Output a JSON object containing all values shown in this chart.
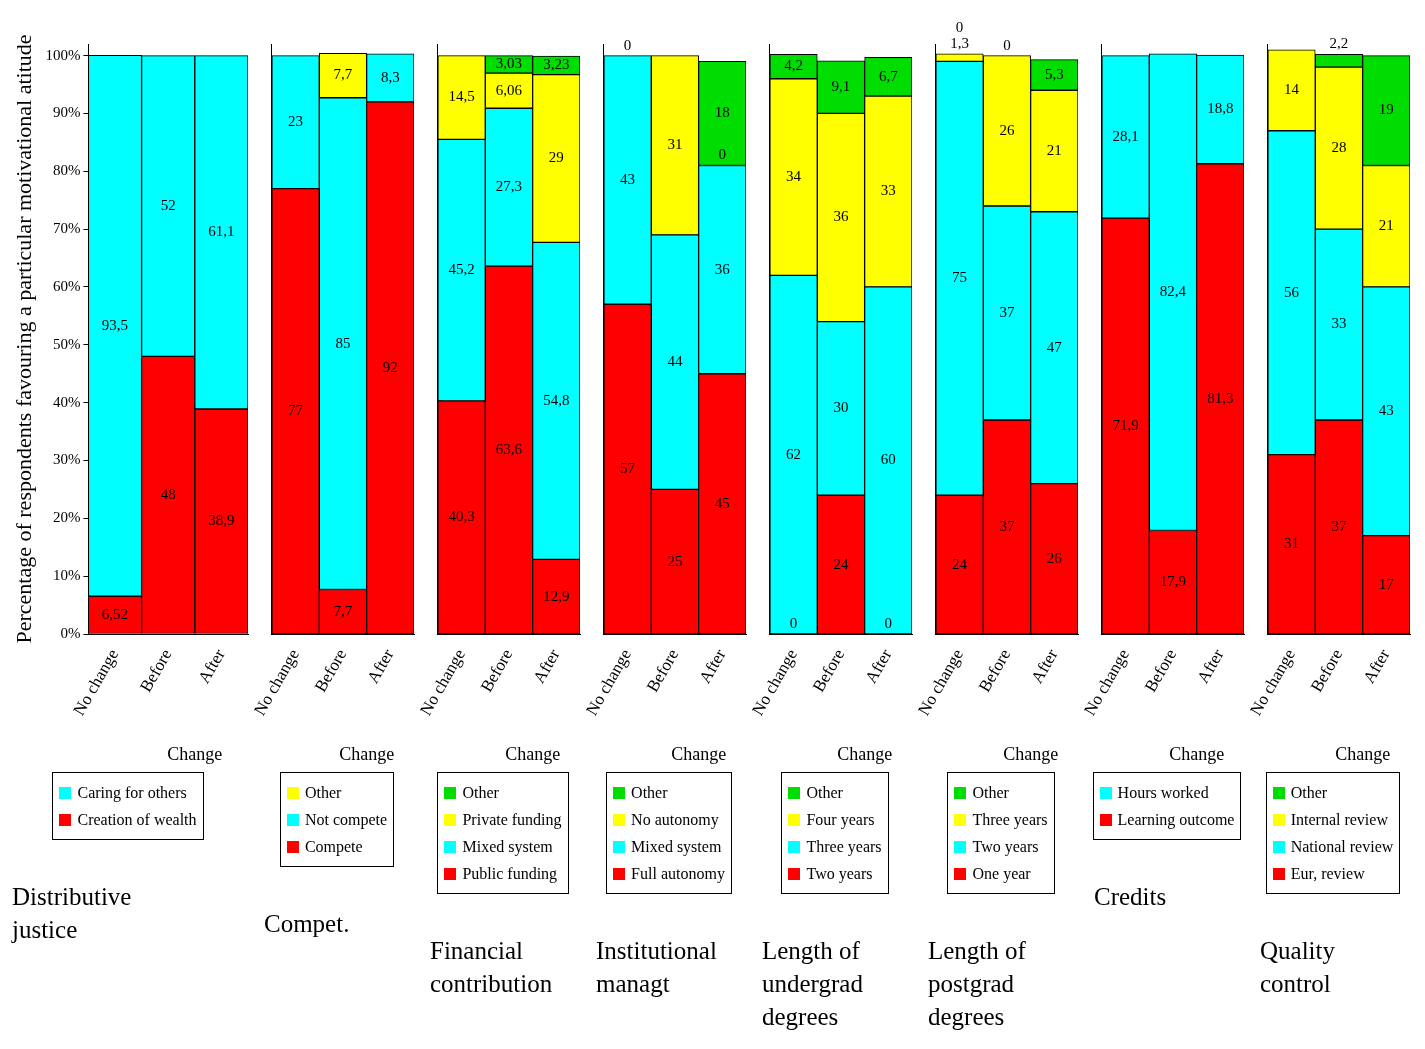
{
  "chart_data": [
    {
      "type": "bar",
      "stacked": true,
      "title": "Distributive justice",
      "ylabel": "Percentage of respondents favouring a particular motivational atitude",
      "categories": [
        "No change",
        "Before",
        "After"
      ],
      "annotations": [
        "Change"
      ],
      "ylim": [
        0,
        102
      ],
      "yticks": [
        {
          "value": 0,
          "label": "0%"
        },
        {
          "value": 10,
          "label": "10%"
        },
        {
          "value": 20,
          "label": "20%"
        },
        {
          "value": 30,
          "label": "30%"
        },
        {
          "value": 40,
          "label": "40%"
        },
        {
          "value": 50,
          "label": "50%"
        },
        {
          "value": 60,
          "label": "60%"
        },
        {
          "value": 70,
          "label": "70%"
        },
        {
          "value": 80,
          "label": "80%"
        },
        {
          "value": 90,
          "label": "90%"
        },
        {
          "value": 100,
          "label": "100%"
        }
      ],
      "legend": "bottom",
      "series": [
        {
          "name": "Creation of wealth",
          "color": "#ff0000",
          "values": [
            6.52,
            48,
            38.9
          ],
          "value_labels": [
            "6,52",
            "48",
            "38,9"
          ]
        },
        {
          "name": "Caring for others",
          "color": "#00ffff",
          "values": [
            93.5,
            52,
            61.1
          ],
          "value_labels": [
            "93,5",
            "52",
            "61,1"
          ]
        }
      ]
    },
    {
      "type": "bar",
      "stacked": true,
      "title": "Compet.",
      "categories": [
        "No change",
        "Before",
        "After"
      ],
      "annotations": [
        "Change"
      ],
      "ylim": [
        0,
        102
      ],
      "tick_labels": "x",
      "legend": "bottom",
      "series": [
        {
          "name": "Compete",
          "color": "#ff0000",
          "values": [
            77,
            7.7,
            92
          ],
          "value_labels": [
            "77",
            "7,7",
            "92"
          ]
        },
        {
          "name": "Not compete",
          "color": "#00ffff",
          "values": [
            23,
            85,
            8.3
          ],
          "value_labels": [
            "23",
            "85",
            "8,3"
          ]
        },
        {
          "name": "Other",
          "color": "#ffff00",
          "values": [
            null,
            7.7,
            null
          ],
          "value_labels": [
            null,
            "7,7",
            null
          ]
        }
      ]
    },
    {
      "type": "bar",
      "stacked": true,
      "title": "Financial contribution",
      "categories": [
        "No change",
        "Before",
        "After"
      ],
      "annotations": [
        "Change"
      ],
      "ylim": [
        0,
        102
      ],
      "tick_labels": "x",
      "legend": "bottom",
      "series": [
        {
          "name": "Public funding",
          "color": "#ff0000",
          "values": [
            40.3,
            63.6,
            12.9
          ],
          "value_labels": [
            "40,3",
            "63,6",
            "12,9"
          ]
        },
        {
          "name": "Mixed system",
          "color": "#00ffff",
          "values": [
            45.2,
            27.3,
            54.8
          ],
          "value_labels": [
            "45,2",
            "27,3",
            "54,8"
          ]
        },
        {
          "name": "Private funding",
          "color": "#ffff00",
          "values": [
            14.5,
            6.06,
            29
          ],
          "value_labels": [
            "14,5",
            "6,06",
            "29"
          ]
        },
        {
          "name": "Other",
          "color": "#00dd00",
          "values": [
            null,
            3.03,
            3.23
          ],
          "value_labels": [
            null,
            "3,03",
            "3,23"
          ]
        }
      ]
    },
    {
      "type": "bar",
      "stacked": true,
      "title": "Institutional managt",
      "categories": [
        "No change",
        "Before",
        "After"
      ],
      "annotations": [
        "Change"
      ],
      "ylim": [
        0,
        102
      ],
      "tick_labels": "x",
      "legend": "bottom",
      "series": [
        {
          "name": "Full autonomy",
          "color": "#ff0000",
          "values": [
            57,
            25,
            45
          ],
          "value_labels": [
            "57",
            "25",
            "45"
          ]
        },
        {
          "name": "Mixed system",
          "color": "#00ffff",
          "values": [
            43,
            44,
            36
          ],
          "value_labels": [
            "43",
            "44",
            "36"
          ]
        },
        {
          "name": "No autonomy",
          "color": "#ffff00",
          "values": [
            null,
            31,
            0
          ],
          "value_labels": [
            null,
            "31",
            "0"
          ]
        },
        {
          "name": "Other",
          "color": "#00dd00",
          "values": [
            0,
            null,
            18
          ],
          "value_labels": [
            "0",
            null,
            "18"
          ]
        }
      ]
    },
    {
      "type": "bar",
      "stacked": true,
      "title": "Length of undergrad degrees",
      "categories": [
        "No change",
        "Before",
        "After"
      ],
      "annotations": [
        "Change"
      ],
      "ylim": [
        0,
        102
      ],
      "tick_labels": "x",
      "legend": "bottom",
      "series": [
        {
          "name": "Two years",
          "color": "#ff0000",
          "values": [
            0,
            24,
            0
          ],
          "value_labels": [
            "0",
            "24",
            "0"
          ]
        },
        {
          "name": "Three years",
          "color": "#00ffff",
          "values": [
            62,
            30,
            60
          ],
          "value_labels": [
            "62",
            "30",
            "60"
          ]
        },
        {
          "name": "Four years",
          "color": "#ffff00",
          "values": [
            34,
            36,
            33
          ],
          "value_labels": [
            "34",
            "36",
            "33"
          ]
        },
        {
          "name": "Other",
          "color": "#00dd00",
          "values": [
            4.2,
            9.1,
            6.7
          ],
          "value_labels": [
            "4,2",
            "9,1",
            "6,7"
          ]
        }
      ]
    },
    {
      "type": "bar",
      "stacked": true,
      "title": "Length of postgrad degrees",
      "categories": [
        "No change",
        "Before",
        "After"
      ],
      "annotations": [
        "Change"
      ],
      "ylim": [
        0,
        102
      ],
      "tick_labels": "x",
      "legend": "bottom",
      "series": [
        {
          "name": "One year",
          "color": "#ff0000",
          "values": [
            24,
            37,
            26
          ],
          "value_labels": [
            "24",
            "37",
            "26"
          ]
        },
        {
          "name": "Two years",
          "color": "#00ffff",
          "values": [
            75,
            37,
            47
          ],
          "value_labels": [
            "75",
            "37",
            "47"
          ]
        },
        {
          "name": "Three years",
          "color": "#ffff00",
          "values": [
            1.3,
            26,
            21
          ],
          "value_labels": [
            "1,3",
            "26",
            "21"
          ]
        },
        {
          "name": "Other",
          "color": "#00dd00",
          "values": [
            0,
            0,
            5.3
          ],
          "value_labels": [
            "0",
            "0",
            "5,3"
          ]
        }
      ]
    },
    {
      "type": "bar",
      "stacked": true,
      "title": "Credits",
      "categories": [
        "No change",
        "Before",
        "After"
      ],
      "annotations": [
        "Change"
      ],
      "ylim": [
        0,
        102
      ],
      "tick_labels": "x",
      "legend": "bottom",
      "series": [
        {
          "name": "Learning outcome",
          "color": "#ff0000",
          "values": [
            71.9,
            17.9,
            81.3
          ],
          "value_labels": [
            "71,9",
            "17,9",
            "81,3"
          ]
        },
        {
          "name": "Hours worked",
          "color": "#00ffff",
          "values": [
            28.1,
            82.4,
            18.8
          ],
          "value_labels": [
            "28,1",
            "82,4",
            "18,8"
          ]
        }
      ]
    },
    {
      "type": "bar",
      "stacked": true,
      "title": "Quality control",
      "categories": [
        "No change",
        "Before",
        "After"
      ],
      "annotations": [
        "Change"
      ],
      "ylim": [
        0,
        102
      ],
      "tick_labels": "x",
      "legend": "bottom",
      "series": [
        {
          "name": "Eur, review",
          "color": "#ff0000",
          "values": [
            31,
            37,
            17
          ],
          "value_labels": [
            "31",
            "37",
            "17"
          ]
        },
        {
          "name": "National review",
          "color": "#00ffff",
          "values": [
            56,
            33,
            43
          ],
          "value_labels": [
            "56",
            "33",
            "43"
          ]
        },
        {
          "name": "Internal review",
          "color": "#ffff00",
          "values": [
            14,
            28,
            21
          ],
          "value_labels": [
            "14",
            "28",
            "21"
          ]
        },
        {
          "name": "Other",
          "color": "#00dd00",
          "values": [
            null,
            2.2,
            19
          ],
          "value_labels": [
            null,
            "2,2",
            "19"
          ]
        }
      ]
    }
  ]
}
